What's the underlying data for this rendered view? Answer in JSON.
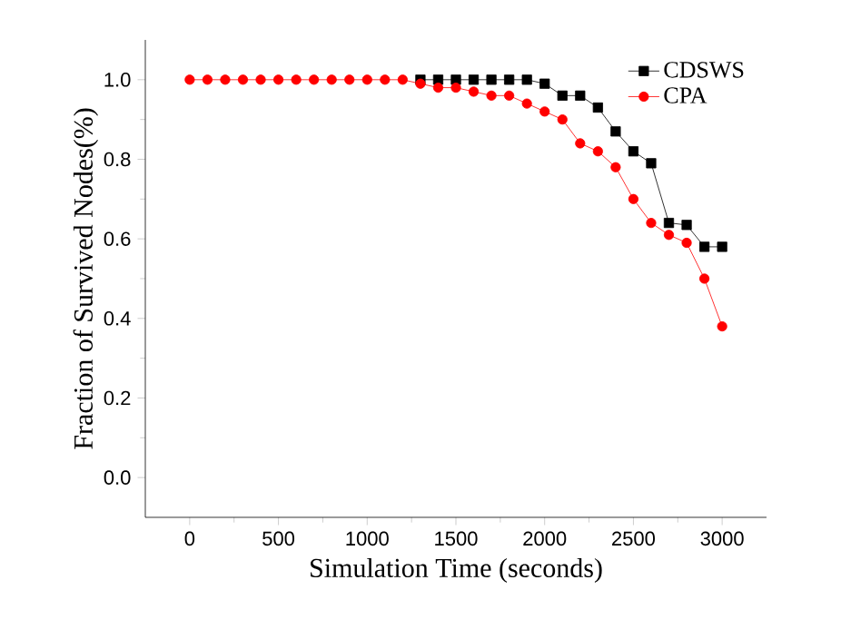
{
  "chart_data": {
    "type": "line",
    "xlabel": "Simulation Time (seconds)",
    "ylabel": "Fraction of Survived Nodes(%)",
    "x": [
      0,
      100,
      200,
      300,
      400,
      500,
      600,
      700,
      800,
      900,
      1000,
      1100,
      1200,
      1300,
      1400,
      1500,
      1600,
      1700,
      1800,
      1900,
      2000,
      2100,
      2200,
      2300,
      2400,
      2500,
      2600,
      2700,
      2800,
      2900,
      3000
    ],
    "series": [
      {
        "name": "CDSWS",
        "color": "#000000",
        "marker": "square",
        "values": [
          null,
          null,
          null,
          null,
          null,
          null,
          null,
          null,
          null,
          null,
          null,
          null,
          null,
          1.0,
          1.0,
          1.0,
          1.0,
          1.0,
          1.0,
          1.0,
          0.99,
          0.96,
          0.96,
          0.93,
          0.87,
          0.82,
          0.79,
          0.64,
          0.635,
          0.58,
          0.58
        ]
      },
      {
        "name": "CPA",
        "color": "#ff0000",
        "marker": "circle",
        "values": [
          1.0,
          1.0,
          1.0,
          1.0,
          1.0,
          1.0,
          1.0,
          1.0,
          1.0,
          1.0,
          1.0,
          1.0,
          1.0,
          0.99,
          0.98,
          0.98,
          0.97,
          0.96,
          0.96,
          0.94,
          0.92,
          0.9,
          0.84,
          0.82,
          0.78,
          0.7,
          0.64,
          0.61,
          0.59,
          0.5,
          0.38
        ]
      }
    ],
    "xlim": [
      -250,
      3250
    ],
    "ylim": [
      -0.1,
      1.1
    ],
    "xticks": [
      0,
      500,
      1000,
      1500,
      2000,
      2500,
      3000
    ],
    "yticks": [
      {
        "value": 0,
        "label": "0.0"
      },
      {
        "value": 0.2,
        "label": "0.2"
      },
      {
        "value": 0.4,
        "label": "0.4"
      },
      {
        "value": 0.6,
        "label": "0.6"
      },
      {
        "value": 0.8,
        "label": "0.8"
      },
      {
        "value": 1.0,
        "label": "1.0"
      }
    ],
    "legend": "top right",
    "grid": false,
    "line_style": "solid"
  }
}
